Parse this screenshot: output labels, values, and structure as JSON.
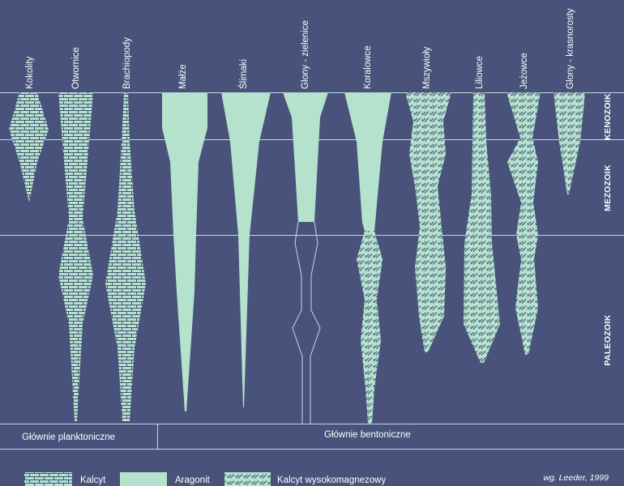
{
  "colors": {
    "background": "#48527a",
    "fill": "#b4e2cc",
    "line": "#c9d7e6",
    "pattern_line": "#48527a",
    "text": "#ffffff"
  },
  "taxa": [
    {
      "name": "Kokolity",
      "mineral": "kalcyt"
    },
    {
      "name": "Otwornice",
      "mineral": "kalcyt"
    },
    {
      "name": "Brachiopody",
      "mineral": "kalcyt"
    },
    {
      "name": "Małże",
      "mineral": "aragonit"
    },
    {
      "name": "Ślimaki",
      "mineral": "aragonit"
    },
    {
      "name": "Glony - zielenice",
      "mineral": "aragonit"
    },
    {
      "name": "Koralowce",
      "mineral": "aragonit / kalcyt wysokomagnezowy"
    },
    {
      "name": "Mszywioły",
      "mineral": "kalcyt wysokomagnezowy"
    },
    {
      "name": "Liliowce",
      "mineral": "kalcyt wysokomagnezowy"
    },
    {
      "name": "Jeżowce",
      "mineral": "kalcyt wysokomagnezowy"
    },
    {
      "name": "Glony - krasnorosty",
      "mineral": "kalcyt wysokomagnezowy"
    }
  ],
  "eras": [
    {
      "name": "KENOZOIK"
    },
    {
      "name": "MEZOZOIK"
    },
    {
      "name": "PALEOZOIK"
    }
  ],
  "groups": [
    {
      "label": "Głównie planktoniczne"
    },
    {
      "label": "Głównie bentoniczne"
    }
  ],
  "legend": [
    {
      "label": "Kalcyt",
      "pattern": "brick"
    },
    {
      "label": "Aragonit",
      "pattern": "solid"
    },
    {
      "label": "Kalcyt wysokomagnezowy",
      "pattern": "hatch"
    }
  ],
  "credit": "wg. Leeder, 1999"
}
